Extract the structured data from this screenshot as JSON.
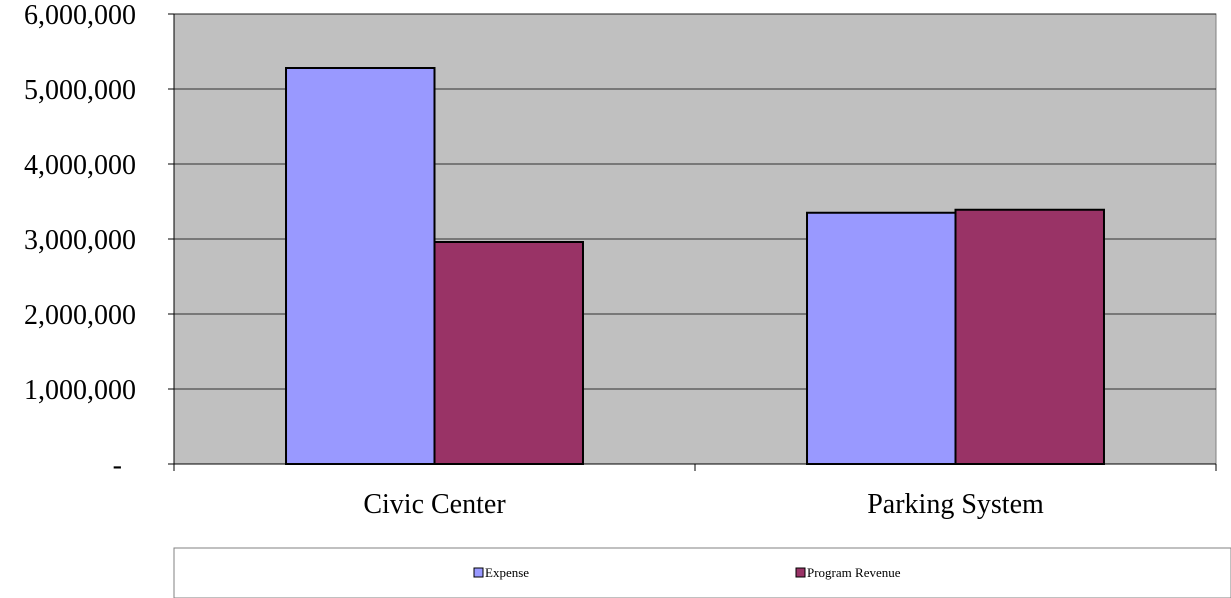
{
  "chart_data": {
    "type": "bar",
    "title": "",
    "xlabel": "",
    "ylabel": "",
    "categories": [
      "Civic Center",
      "Parking System"
    ],
    "series": [
      {
        "name": "Expense",
        "values": [
          5280000,
          3350000
        ]
      },
      {
        "name": "Program Revenue",
        "values": [
          2960000,
          3390000
        ]
      }
    ],
    "ylim": [
      0,
      6000000
    ],
    "yticks": [
      {
        "value": 0,
        "label": "-"
      },
      {
        "value": 1000000,
        "label": "1,000,000"
      },
      {
        "value": 2000000,
        "label": "2,000,000"
      },
      {
        "value": 3000000,
        "label": "3,000,000"
      },
      {
        "value": 4000000,
        "label": "4,000,000"
      },
      {
        "value": 5000000,
        "label": "5,000,000"
      },
      {
        "value": 6000000,
        "label": "6,000,000"
      }
    ],
    "grid": true,
    "legend_position": "bottom",
    "colors": {
      "plot_background": "#c0c0c0",
      "Expense": "#9999ff",
      "Program Revenue": "#993366",
      "gridline": "#000000"
    }
  }
}
